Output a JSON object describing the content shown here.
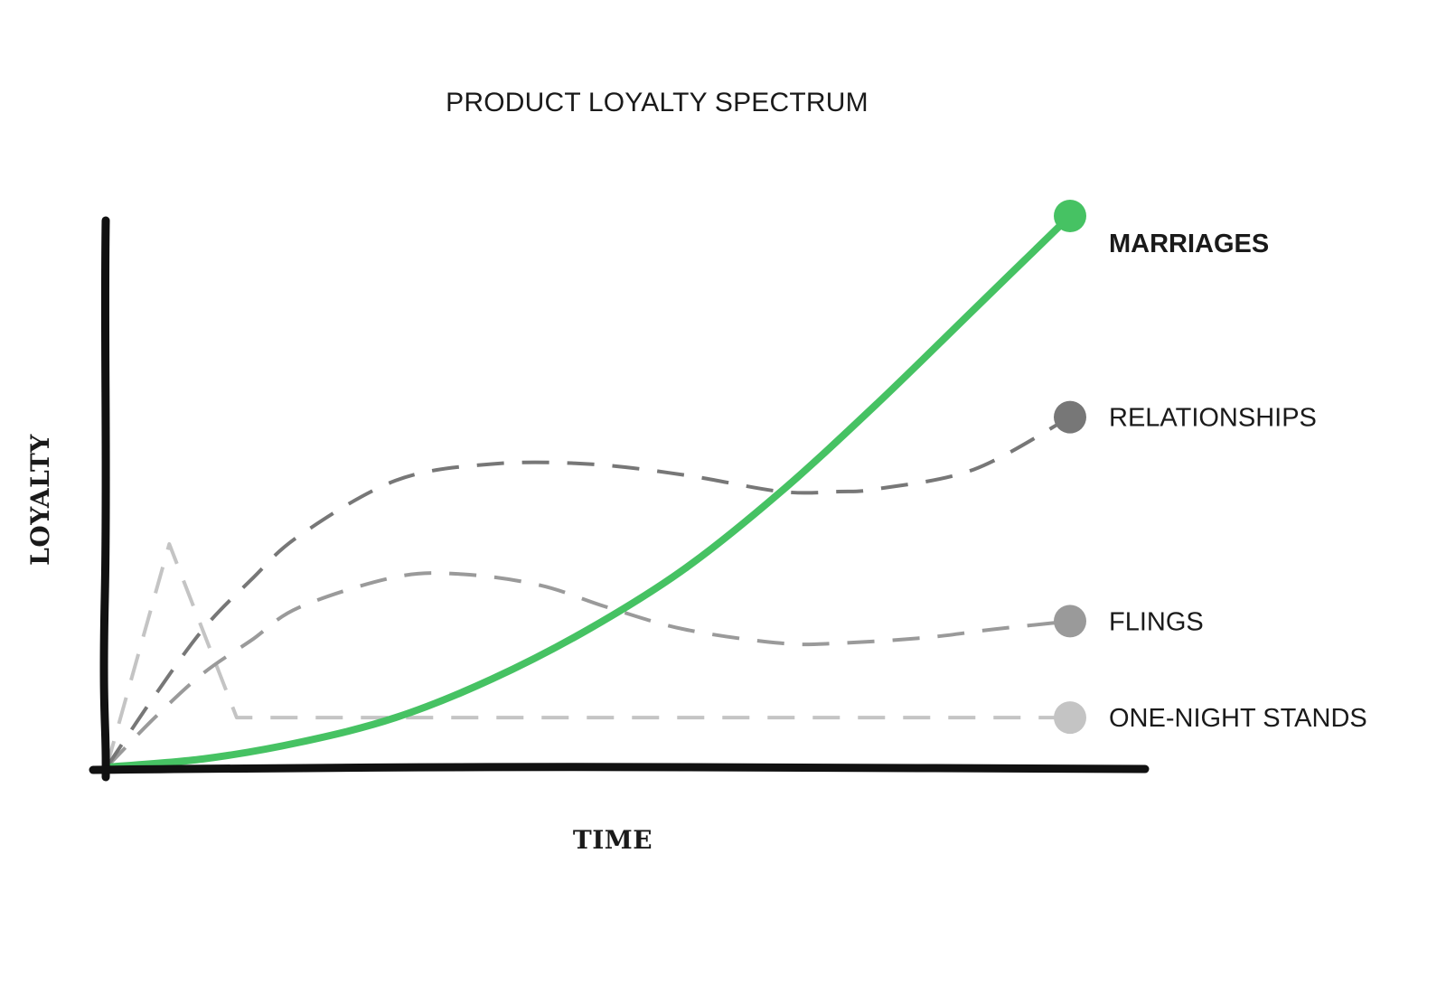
{
  "chart_data": {
    "type": "line",
    "title": "PRODUCT LOYALTY SPECTRUM",
    "xlabel": "TIME",
    "ylabel": "LOYALTY",
    "xlim": [
      0,
      100
    ],
    "ylim": [
      0,
      100
    ],
    "grid": false,
    "legend": "right-end labels",
    "series": [
      {
        "name": "MARRIAGES",
        "emphasis": true,
        "color": "#46c263",
        "style": "solid",
        "x": [
          0,
          10,
          20,
          30,
          40,
          50,
          60,
          70,
          80,
          90,
          100
        ],
        "y": [
          0,
          1.5,
          4.5,
          9,
          16,
          25,
          36,
          50,
          66,
          83,
          100
        ]
      },
      {
        "name": "RELATIONSHIPS",
        "color": "#777777",
        "style": "dashed",
        "x": [
          0,
          5,
          10,
          15,
          20,
          30,
          40,
          50,
          60,
          70,
          76,
          80,
          90,
          100
        ],
        "y": [
          0,
          13,
          25,
          34,
          42,
          52,
          55,
          55,
          53,
          50,
          50,
          50.5,
          54,
          63.5
        ]
      },
      {
        "name": "FLINGS",
        "color": "#9a9a9a",
        "style": "dashed",
        "x": [
          0,
          5,
          10,
          15,
          20,
          30,
          37,
          45,
          52,
          60,
          70,
          76,
          85,
          92,
          100
        ],
        "y": [
          0,
          9,
          17,
          23,
          29,
          34.5,
          35,
          33,
          29,
          25,
          22.5,
          22.5,
          23.5,
          25,
          26.5
        ]
      },
      {
        "name": "ONE-NIGHT STANDS",
        "color": "#c4c4c4",
        "style": "dashed",
        "x": [
          0,
          6.5,
          13.5,
          100
        ],
        "y": [
          0,
          40.5,
          9,
          9
        ]
      }
    ]
  }
}
